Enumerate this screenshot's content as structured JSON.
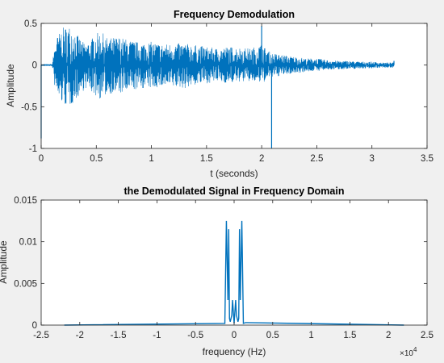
{
  "figure": {
    "background": "#f0f0f0",
    "axes_background": "#ffffff",
    "line_color": "#0072bd"
  },
  "chart_data": [
    {
      "type": "line",
      "title": "Frequency Demodulation",
      "xlabel": "t (seconds)",
      "ylabel": "Amplitude",
      "xlim": [
        0,
        3.5
      ],
      "ylim": [
        -1,
        0.5
      ],
      "xticks": [
        0,
        0.5,
        1,
        1.5,
        2,
        2.5,
        3,
        3.5
      ],
      "xtick_labels": [
        "0",
        "0.5",
        "1",
        "1.5",
        "2",
        "2.5",
        "3",
        "3.5"
      ],
      "yticks": [
        -1,
        -0.5,
        0,
        0.5
      ],
      "ytick_labels": [
        "-1",
        "-0.5",
        "0",
        "0.5"
      ],
      "grid": false,
      "series": [
        {
          "envelope": {
            "x": [
              0,
              0.1,
              0.13,
              0.16,
              0.2,
              0.26,
              0.3,
              0.35,
              0.4,
              0.45,
              0.5,
              0.55,
              0.6,
              0.7,
              0.8,
              0.9,
              1.0,
              1.1,
              1.2,
              1.3,
              1.4,
              1.5,
              1.6,
              1.7,
              1.8,
              1.9,
              2.0,
              2.05,
              2.1,
              2.2,
              2.3,
              2.4,
              2.5,
              2.6,
              2.7,
              2.8,
              2.9,
              3.0,
              3.1,
              3.2
            ],
            "upper": [
              0.01,
              0.01,
              0.3,
              0.38,
              0.45,
              0.47,
              0.42,
              0.32,
              0.25,
              0.3,
              0.38,
              0.4,
              0.32,
              0.34,
              0.3,
              0.27,
              0.28,
              0.25,
              0.26,
              0.26,
              0.24,
              0.22,
              0.2,
              0.22,
              0.21,
              0.2,
              0.25,
              0.18,
              0.14,
              0.12,
              0.1,
              0.08,
              0.08,
              0.06,
              0.05,
              0.05,
              0.04,
              0.04,
              0.03,
              0.03
            ],
            "lower": [
              -0.01,
              -0.01,
              -0.35,
              -0.42,
              -0.48,
              -0.5,
              -0.44,
              -0.36,
              -0.28,
              -0.32,
              -0.38,
              -0.42,
              -0.34,
              -0.35,
              -0.32,
              -0.28,
              -0.28,
              -0.26,
              -0.27,
              -0.28,
              -0.24,
              -0.22,
              -0.2,
              -0.22,
              -0.2,
              -0.2,
              -0.22,
              -0.18,
              -0.15,
              -0.12,
              -0.1,
              -0.08,
              -0.07,
              -0.06,
              -0.05,
              -0.05,
              -0.04,
              -0.04,
              -0.03,
              -0.03
            ]
          },
          "spikes": [
            {
              "x": 0.0,
              "y": -0.88
            },
            {
              "x": 2.0,
              "y": 0.47
            },
            {
              "x": 2.09,
              "y": -1.0
            },
            {
              "x": 3.2,
              "y": 0.05
            }
          ]
        }
      ]
    },
    {
      "type": "line",
      "title": "the Demodulated Signal in Frequency Domain",
      "xlabel": "frequency (Hz)",
      "ylabel": "Amplitude",
      "x_exponent_label": "×10",
      "x_exponent": "4",
      "xlim": [
        -2.5,
        2.5
      ],
      "ylim": [
        0,
        0.015
      ],
      "xticks": [
        -2.5,
        -2,
        -1.5,
        -1,
        -0.5,
        0,
        0.5,
        1,
        1.5,
        2,
        2.5
      ],
      "xtick_labels": [
        "-2.5",
        "-2",
        "-1.5",
        "-1",
        "-0.5",
        "0",
        "0.5",
        "1",
        "1.5",
        "2",
        "2.5"
      ],
      "yticks": [
        0,
        0.005,
        0.01,
        0.015
      ],
      "ytick_labels": [
        "0",
        "0.005",
        "0.01",
        "0.015"
      ],
      "grid": false,
      "series": [
        {
          "x": [
            -2.2,
            -0.12,
            -0.1,
            -0.08,
            -0.07,
            -0.06,
            -0.05,
            -0.03,
            -0.02,
            -0.01,
            0,
            0.01,
            0.02,
            0.03,
            0.05,
            0.06,
            0.07,
            0.08,
            0.1,
            0.12,
            0.15,
            2.2
          ],
          "y": [
            0,
            0.0002,
            0.0125,
            0.003,
            0.0115,
            0.0008,
            0.0004,
            0.0012,
            0.003,
            0.0016,
            0.0002,
            0.0016,
            0.003,
            0.0012,
            0.0004,
            0.0008,
            0.0115,
            0.003,
            0.0125,
            0.0002,
            0.0003,
            0
          ]
        }
      ]
    }
  ]
}
